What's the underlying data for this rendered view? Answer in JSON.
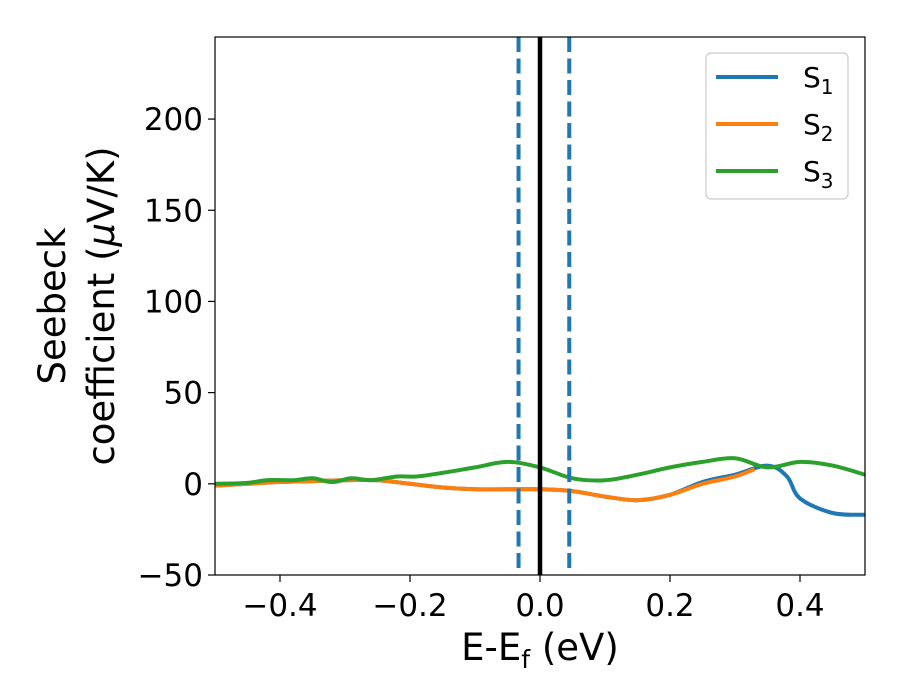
{
  "chart_data": {
    "type": "line",
    "xlabel": "E-E",
    "xlabel_sub": "f",
    "xlabel_unit": " (eV)",
    "ylabel_line1": "Seebeck",
    "ylabel_line2": "coefficient  (",
    "ylabel_mu": "μ",
    "ylabel_unit": "V/K)",
    "xlim": [
      -0.5,
      0.5
    ],
    "ylim": [
      -50,
      245
    ],
    "xticks": [
      -0.4,
      -0.2,
      0.0,
      0.2,
      0.4
    ],
    "xtick_labels": [
      "−0.4",
      "−0.2",
      "0.0",
      "0.2",
      "0.4"
    ],
    "yticks": [
      -50,
      0,
      50,
      100,
      150,
      200
    ],
    "ytick_labels": [
      "−50",
      "0",
      "50",
      "100",
      "150",
      "200"
    ],
    "grid": false,
    "legend_position": "top-right",
    "vlines": [
      {
        "x": -0.033,
        "style": "dashed",
        "color": "#1f77b4"
      },
      {
        "x": 0.0,
        "style": "solid",
        "color": "#000000"
      },
      {
        "x": 0.045,
        "style": "dashed",
        "color": "#1f77b4"
      }
    ],
    "series": [
      {
        "name": "S",
        "sub": "1",
        "color": "#1f77b4",
        "x": [
          -0.5,
          -0.45,
          -0.4,
          -0.35,
          -0.3,
          -0.25,
          -0.2,
          -0.15,
          -0.1,
          -0.05,
          0.0,
          0.05,
          0.1,
          0.15,
          0.2,
          0.25,
          0.3,
          0.35,
          0.38,
          0.4,
          0.45,
          0.5
        ],
        "y": [
          -1,
          0,
          1,
          1.5,
          2,
          2,
          0,
          -2,
          -3,
          -3,
          -3,
          -4,
          -7,
          -9,
          -6,
          1,
          5,
          10,
          4,
          -8,
          -16,
          -17
        ]
      },
      {
        "name": "S",
        "sub": "2",
        "color": "#ff7f0e",
        "x": [
          -0.5,
          -0.45,
          -0.4,
          -0.35,
          -0.3,
          -0.25,
          -0.2,
          -0.15,
          -0.1,
          -0.05,
          0.0,
          0.05,
          0.1,
          0.15,
          0.2,
          0.25,
          0.3,
          0.33
        ],
        "y": [
          -1,
          0,
          1,
          1.5,
          2,
          2,
          0,
          -2,
          -3,
          -3,
          -3,
          -4,
          -7,
          -9,
          -6,
          0,
          4,
          8
        ]
      },
      {
        "name": "S",
        "sub": "3",
        "color": "#2ca02c",
        "x": [
          -0.5,
          -0.45,
          -0.42,
          -0.38,
          -0.35,
          -0.32,
          -0.29,
          -0.26,
          -0.22,
          -0.19,
          -0.15,
          -0.1,
          -0.05,
          0.0,
          0.05,
          0.1,
          0.15,
          0.2,
          0.25,
          0.3,
          0.35,
          0.4,
          0.45,
          0.5
        ],
        "y": [
          0,
          0.5,
          2,
          2,
          3,
          1,
          3,
          2,
          4,
          4,
          6,
          9,
          12,
          9,
          3,
          2,
          5,
          9,
          12,
          14,
          9,
          12,
          10,
          5
        ]
      }
    ]
  }
}
